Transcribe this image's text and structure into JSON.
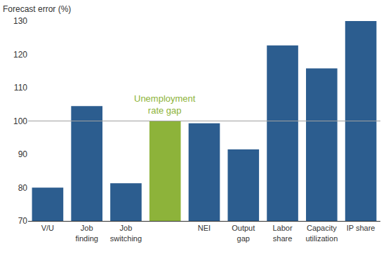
{
  "chart_data": {
    "type": "bar",
    "y_label": "Forecast error (%)",
    "categories": [
      "V/U",
      "Job\nfinding",
      "Job\nswitching",
      null,
      "NEI",
      "Output\ngap",
      "Labor\nshare",
      "Capacity\nutilization",
      "IP share"
    ],
    "values": [
      80,
      104.5,
      81.3,
      100,
      99.3,
      91.5,
      122.7,
      115.8,
      130
    ],
    "colors": [
      "#2c5d8f",
      "#2c5d8f",
      "#2c5d8f",
      "#8db33a",
      "#2c5d8f",
      "#2c5d8f",
      "#2c5d8f",
      "#2c5d8f",
      "#2c5d8f"
    ],
    "ylim": [
      70,
      130
    ],
    "yticks": [
      70,
      80,
      90,
      100,
      110,
      120,
      130
    ],
    "grid": false,
    "hline": 100,
    "annotations": [
      {
        "text": "Unemployment\nrate gap",
        "category_index": 3,
        "color": "#8db33a"
      }
    ]
  }
}
